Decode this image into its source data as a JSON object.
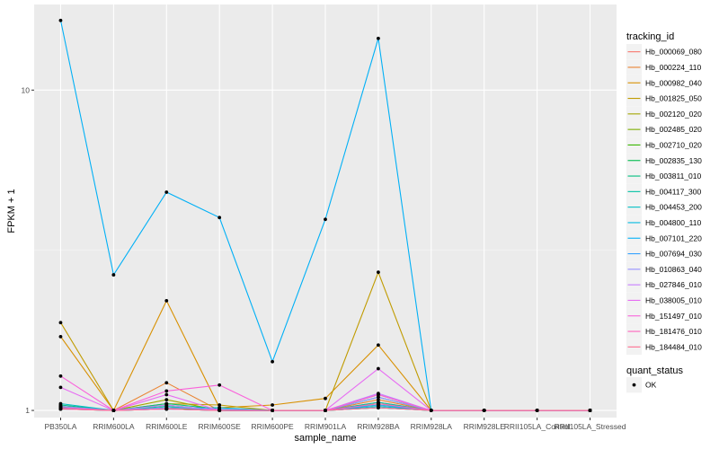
{
  "chart_data": {
    "type": "line",
    "title": "",
    "xlabel": "sample_name",
    "ylabel": "FPKM + 1",
    "y_scale": "log10",
    "ylim": [
      0.95,
      18.5
    ],
    "y_ticks": [
      1,
      10
    ],
    "y_tick_labels": [
      "1",
      "10"
    ],
    "grid": true,
    "panel_background": "#ebebeb",
    "legend_position": "right",
    "categories": [
      "PB350LA",
      "RRIM600LA",
      "RRIM600LE",
      "RRIM600SE",
      "RRIM600PE",
      "RRIM901LA",
      "RRIM928BA",
      "RRIM928LA",
      "RRIM928LE",
      "RRII105LA_Control",
      "RRII105LA_Stressed"
    ],
    "x_tick_labels": [
      "PB350LA",
      "RRIM600LA",
      "RRIM600LE",
      "RRIM600SE",
      "RRIM600PE",
      "RRIM901LA",
      "RRIM928BA",
      "RRIM928LA",
      "RRIM928LE",
      "RRII105LA_Control",
      "RRII105LA_Stressed"
    ],
    "legend_title": "tracking_id",
    "series": [
      {
        "name": "Hb_000069_080",
        "color": "#F8766D",
        "values": [
          1.03,
          1,
          1.02,
          1,
          1,
          1,
          1.06,
          1,
          1,
          1,
          1
        ]
      },
      {
        "name": "Hb_000224_110",
        "color": "#EA8331",
        "values": [
          1.02,
          1,
          1.22,
          1,
          1,
          1,
          1.08,
          1,
          1,
          1,
          1
        ]
      },
      {
        "name": "Hb_000982_040",
        "color": "#D89000",
        "values": [
          1.7,
          1,
          2.2,
          1.02,
          1.04,
          1.09,
          1.6,
          1,
          1,
          1,
          1
        ]
      },
      {
        "name": "Hb_001825_050",
        "color": "#C09B00",
        "values": [
          1.88,
          1,
          1.05,
          1.04,
          1,
          1,
          2.7,
          1,
          1,
          1,
          1
        ]
      },
      {
        "name": "Hb_002120_020",
        "color": "#A3A500",
        "values": [
          1.02,
          1,
          1.08,
          1,
          1,
          1,
          1.12,
          1,
          1,
          1,
          1
        ]
      },
      {
        "name": "Hb_002485_020",
        "color": "#7CAE00",
        "values": [
          1.01,
          1,
          1.04,
          1,
          1,
          1,
          1.05,
          1,
          1,
          1,
          1
        ]
      },
      {
        "name": "Hb_002710_020",
        "color": "#39B600",
        "values": [
          1.02,
          1,
          1.02,
          1,
          1,
          1,
          1.04,
          1,
          1,
          1,
          1
        ]
      },
      {
        "name": "Hb_002835_130",
        "color": "#00BB4E",
        "values": [
          1.03,
          1,
          1.01,
          1,
          1,
          1,
          1.02,
          1,
          1,
          1,
          1
        ]
      },
      {
        "name": "Hb_003811_010",
        "color": "#00BF7D",
        "values": [
          1.04,
          1,
          1.05,
          1.01,
          1,
          1,
          1.1,
          1,
          1,
          1,
          1
        ]
      },
      {
        "name": "Hb_004117_300",
        "color": "#00C1A3",
        "values": [
          1.02,
          1,
          1.03,
          1,
          1,
          1,
          1.06,
          1,
          1,
          1,
          1
        ]
      },
      {
        "name": "Hb_004453_200",
        "color": "#00BFC4",
        "values": [
          1.05,
          1,
          1.02,
          1.02,
          1,
          1,
          1.03,
          1,
          1,
          1,
          1
        ]
      },
      {
        "name": "Hb_004800_110",
        "color": "#00BAE0",
        "values": [
          1.01,
          1,
          1.01,
          1,
          1,
          1,
          1.02,
          1,
          1,
          1,
          1
        ]
      },
      {
        "name": "Hb_007101_220",
        "color": "#00B0F6",
        "values": [
          16.5,
          2.65,
          4.8,
          4.0,
          1.42,
          3.95,
          14.5,
          1,
          1,
          1,
          1
        ]
      },
      {
        "name": "Hb_007694_030",
        "color": "#35A2FF",
        "values": [
          1.02,
          1,
          1.01,
          1,
          1,
          1,
          1.04,
          1,
          1,
          1,
          1
        ]
      },
      {
        "name": "Hb_010863_040",
        "color": "#9590FF",
        "values": [
          1.03,
          1,
          1.02,
          1.01,
          1,
          1,
          1.1,
          1,
          1,
          1,
          1
        ]
      },
      {
        "name": "Hb_027846_010",
        "color": "#C77CFF",
        "values": [
          1.01,
          1,
          1.04,
          1,
          1,
          1,
          1.13,
          1,
          1,
          1,
          1
        ]
      },
      {
        "name": "Hb_038005_010",
        "color": "#E76BF3",
        "values": [
          1.18,
          1,
          1.12,
          1,
          1,
          1,
          1.35,
          1,
          1,
          1,
          1
        ]
      },
      {
        "name": "Hb_151497_010",
        "color": "#FA62DB",
        "values": [
          1.28,
          1,
          1.15,
          1.2,
          1,
          1,
          1.12,
          1,
          1,
          1,
          1
        ]
      },
      {
        "name": "Hb_181476_010",
        "color": "#FF62BC",
        "values": [
          1.02,
          1,
          1.01,
          1,
          1,
          1,
          1.05,
          1,
          1,
          1,
          1
        ]
      },
      {
        "name": "Hb_184484_010",
        "color": "#FF6C91",
        "values": [
          1.01,
          1,
          1.01,
          1,
          1,
          1,
          1.02,
          1,
          1,
          1,
          1
        ]
      }
    ],
    "points_legend": {
      "title": "quant_status",
      "entries": [
        "OK"
      ]
    }
  }
}
